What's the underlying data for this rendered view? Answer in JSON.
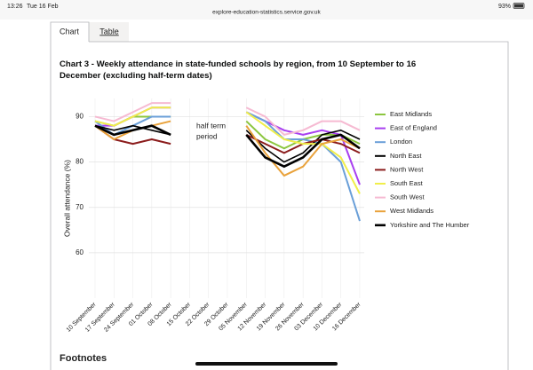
{
  "status_bar": {
    "time": "13:26",
    "date": "Tue 16 Feb",
    "url": "explore-education-statistics.service.gov.uk",
    "battery": "93%"
  },
  "tabs": [
    "Chart",
    "Table"
  ],
  "chart_data": {
    "type": "line",
    "title": "Chart 3 - Weekly attendance in state-funded schools by region, from 10 September to 16 December (excluding half-term dates)",
    "y_label": "Overall attendance (%)",
    "annotation": [
      "half term",
      "period"
    ],
    "categories": [
      "10 September",
      "17 September",
      "24 September",
      "01 October",
      "08 October",
      "15 October",
      "22 October",
      "29 October",
      "05 November",
      "12 November",
      "19 November",
      "26 November",
      "03 December",
      "10 December",
      "16 December"
    ],
    "ylim": [
      50,
      94
    ],
    "yticks": [
      60,
      70,
      80,
      90
    ],
    "grid": true,
    "legend": "right",
    "series": [
      {
        "name": "East Midlands",
        "color": "#8cc63f",
        "width": 2,
        "values": [
          89,
          88,
          90,
          90,
          90,
          null,
          null,
          null,
          89,
          85,
          83,
          85,
          86,
          86,
          84
        ]
      },
      {
        "name": "East of England",
        "color": "#a83ff0",
        "width": 2,
        "values": [
          88,
          88,
          90,
          92,
          92,
          null,
          null,
          null,
          91,
          89,
          87,
          86,
          87,
          86,
          75
        ]
      },
      {
        "name": "London",
        "color": "#6a9fd8",
        "width": 2,
        "values": [
          89,
          86,
          88,
          90,
          90,
          null,
          null,
          null,
          91,
          89,
          85,
          85,
          84,
          80,
          67
        ]
      },
      {
        "name": "North East",
        "color": "#000000",
        "width": 1.6,
        "values": [
          88,
          87,
          88,
          87,
          86,
          null,
          null,
          null,
          87,
          83,
          80,
          82,
          86,
          87,
          85
        ]
      },
      {
        "name": "North West",
        "color": "#8b1c1c",
        "width": 2,
        "values": [
          88,
          85,
          84,
          85,
          84,
          null,
          null,
          null,
          86,
          84,
          82,
          84,
          85,
          84,
          82
        ]
      },
      {
        "name": "South East",
        "color": "#f0ee4a",
        "width": 2,
        "values": [
          89,
          88,
          90,
          92,
          92,
          null,
          null,
          null,
          91,
          88,
          85,
          84,
          84,
          81,
          73
        ]
      },
      {
        "name": "South West",
        "color": "#f6bad2",
        "width": 2,
        "values": [
          90,
          89,
          91,
          93,
          93,
          null,
          null,
          null,
          92,
          90,
          86,
          87,
          89,
          89,
          87
        ]
      },
      {
        "name": "West Midlands",
        "color": "#e9a23b",
        "width": 2,
        "values": [
          88,
          85,
          87,
          88,
          89,
          null,
          null,
          null,
          88,
          82,
          77,
          79,
          84,
          85,
          83
        ]
      },
      {
        "name": "Yorkshire and The Humber",
        "color": "#000000",
        "width": 2.6,
        "values": [
          88,
          86,
          87,
          88,
          86,
          null,
          null,
          null,
          86,
          81,
          79,
          81,
          85,
          86,
          83
        ]
      }
    ]
  },
  "footnotes": "Footnotes"
}
